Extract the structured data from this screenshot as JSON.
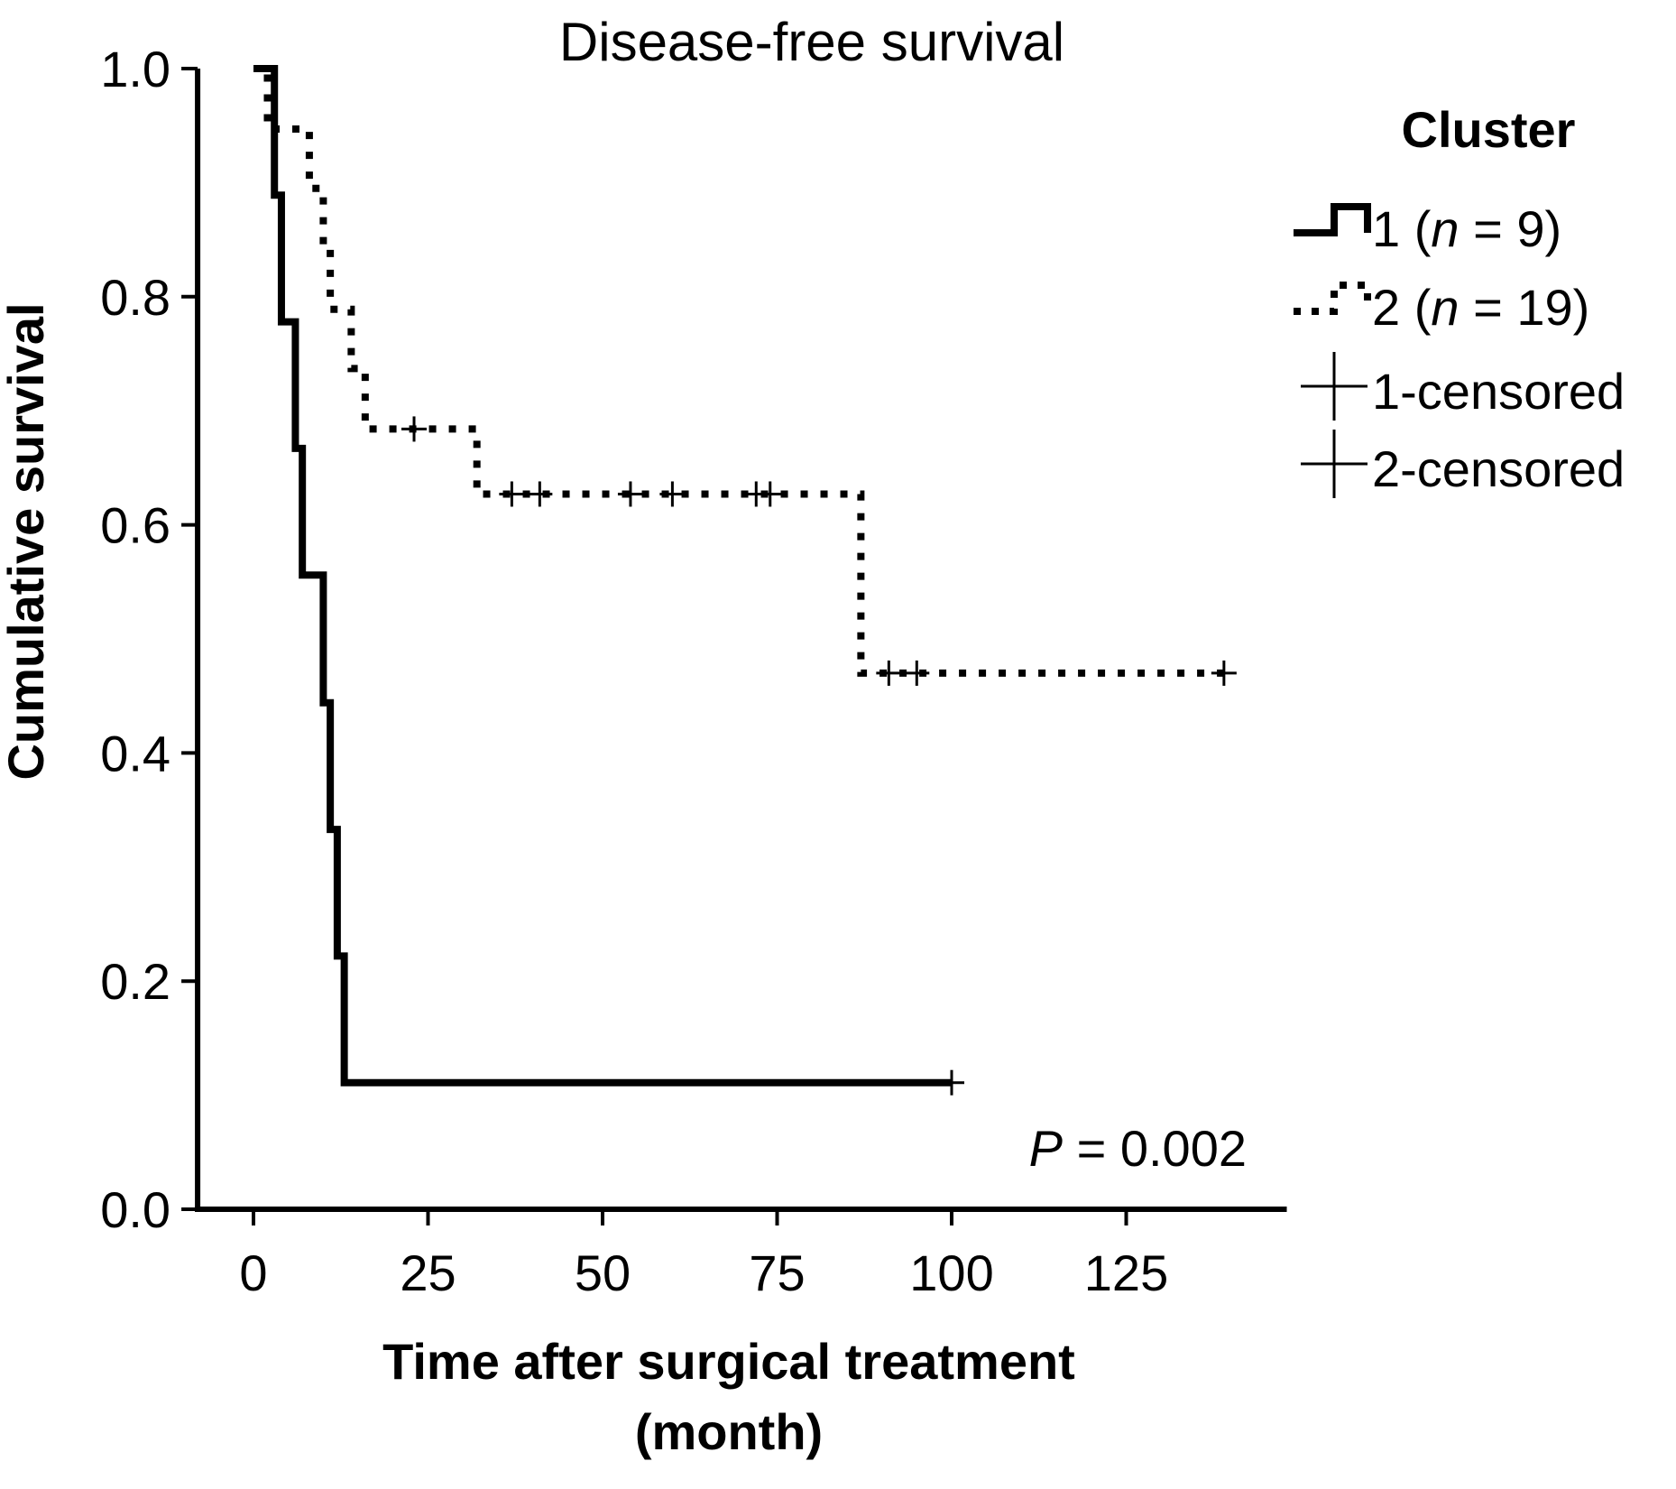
{
  "chart_data": {
    "type": "line",
    "subtype": "kaplan-meier-step",
    "title": "Disease-free survival",
    "xlabel": [
      "Time after surgical treatment",
      "(month)"
    ],
    "ylabel": "Cumulative survival",
    "xlim": [
      -8,
      148
    ],
    "ylim": [
      0,
      1.0
    ],
    "xticks": [
      0,
      25,
      50,
      75,
      100,
      125
    ],
    "xtick_labels": [
      "0",
      "25",
      "50",
      "75",
      "100",
      "125"
    ],
    "yticks": [
      0,
      0.2,
      0.4,
      0.6,
      0.8,
      1.0
    ],
    "ytick_labels": [
      "0.0",
      "0.2",
      "0.4",
      "0.6",
      "0.8",
      "1.0"
    ],
    "grid": false,
    "legend": {
      "title": "Cluster",
      "placement": "right-top",
      "entries": [
        {
          "prefix": "1 (",
          "italic": "n",
          "suffix": " = 9)",
          "style": "solid"
        },
        {
          "prefix": "2 (",
          "italic": "n",
          "suffix": " = 19)",
          "style": "dotted"
        },
        {
          "prefix": "1-censored",
          "italic": "",
          "suffix": "",
          "style": "censor"
        },
        {
          "prefix": "2-censored",
          "italic": "",
          "suffix": "",
          "style": "censor"
        }
      ]
    },
    "annotation": {
      "italic": "P",
      "rest": " = 0.002"
    },
    "series": [
      {
        "style": "solid",
        "steps": [
          [
            0,
            1.0
          ],
          [
            3,
            0.889
          ],
          [
            4,
            0.778
          ],
          [
            6,
            0.667
          ],
          [
            7,
            0.556
          ],
          [
            10,
            0.444
          ],
          [
            11,
            0.333
          ],
          [
            12,
            0.222
          ],
          [
            13,
            0.111
          ],
          [
            100,
            0.111
          ]
        ],
        "censored": [
          [
            100,
            0.111
          ]
        ]
      },
      {
        "style": "dotted",
        "steps": [
          [
            0,
            1.0
          ],
          [
            2,
            0.947
          ],
          [
            8,
            0.895
          ],
          [
            10,
            0.842
          ],
          [
            11,
            0.789
          ],
          [
            14,
            0.737
          ],
          [
            16,
            0.684
          ],
          [
            32,
            0.627
          ],
          [
            87,
            0.47
          ],
          [
            140,
            0.47
          ]
        ],
        "censored": [
          [
            23,
            0.684
          ],
          [
            37,
            0.627
          ],
          [
            41,
            0.627
          ],
          [
            54,
            0.627
          ],
          [
            60,
            0.627
          ],
          [
            72,
            0.627
          ],
          [
            74,
            0.627
          ],
          [
            91,
            0.47
          ],
          [
            95,
            0.47
          ],
          [
            139,
            0.47
          ]
        ]
      }
    ]
  }
}
